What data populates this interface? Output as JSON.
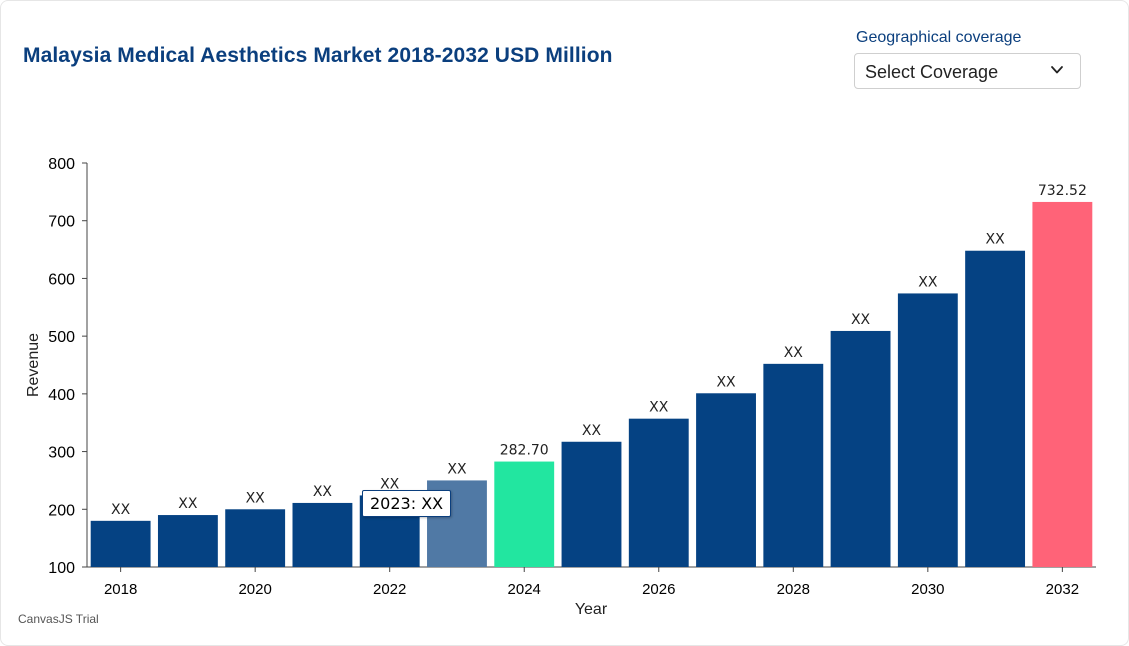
{
  "header": {
    "title": "Malaysia Medical Aesthetics Market 2018-2032 USD Million",
    "geo_label": "Geographical coverage",
    "select_value": "Select Coverage",
    "select_icon": "chevron-down-icon"
  },
  "footer": {
    "credit": "CanvasJS Trial"
  },
  "tooltip": {
    "text": "2023: XX"
  },
  "chart_data": {
    "type": "bar",
    "title": "Malaysia Medical Aesthetics Market 2018-2032 USD Million",
    "xlabel": "Year",
    "ylabel": "Revenue",
    "ylim": [
      100,
      800
    ],
    "yticks": [
      100,
      200,
      300,
      400,
      500,
      600,
      700,
      800
    ],
    "xtick_labels": [
      "2018",
      "2020",
      "2022",
      "2024",
      "2026",
      "2028",
      "2030",
      "2032"
    ],
    "grid": false,
    "categories": [
      "2018",
      "2019",
      "2020",
      "2021",
      "2022",
      "2023",
      "2024",
      "2025",
      "2026",
      "2027",
      "2028",
      "2029",
      "2030",
      "2031",
      "2032"
    ],
    "values": [
      180,
      190,
      200,
      211,
      224,
      250,
      282.7,
      317,
      357,
      401,
      452,
      509,
      574,
      648,
      732.52
    ],
    "labels": [
      "XX",
      "XX",
      "XX",
      "XX",
      "XX",
      "XX",
      "282.70",
      "XX",
      "XX",
      "XX",
      "XX",
      "XX",
      "XX",
      "XX",
      "732.52"
    ],
    "colors": [
      "#054283",
      "#054283",
      "#054283",
      "#054283",
      "#054283",
      "#5079a5",
      "#22e6a0",
      "#054283",
      "#054283",
      "#054283",
      "#054283",
      "#054283",
      "#054283",
      "#054283",
      "#ff6378"
    ]
  }
}
